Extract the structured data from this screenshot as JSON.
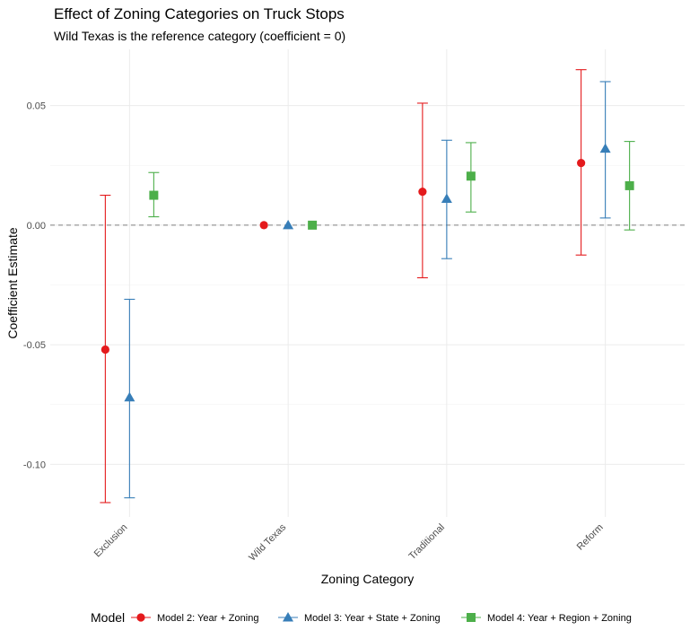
{
  "chart_data": {
    "type": "scatter",
    "title": "Effect of Zoning Categories on Truck Stops",
    "subtitle": "Wild Texas is the reference category (coefficient = 0)",
    "xlabel": "Zoning Category",
    "ylabel": "Coefficient Estimate",
    "categories": [
      "Exclusion",
      "Wild Texas",
      "Traditional",
      "Reform"
    ],
    "yticks": [
      "0.05",
      "0.00",
      "-0.05",
      "-0.10"
    ],
    "ytick_values": [
      0.05,
      0.0,
      -0.05,
      -0.1
    ],
    "ylim": [
      -0.122,
      0.0735
    ],
    "reference_line": 0,
    "grid": true,
    "legend": {
      "title": "Model",
      "position": "bottom"
    },
    "series": [
      {
        "name": "Model 2: Year + Zoning",
        "color": "#E41A1C",
        "marker": "circle",
        "estimate": [
          -0.052,
          0.0,
          0.014,
          0.026
        ],
        "ci_low": [
          -0.116,
          null,
          -0.022,
          -0.0125
        ],
        "ci_high": [
          0.0125,
          null,
          0.051,
          0.065
        ]
      },
      {
        "name": "Model 3: Year + State + Zoning",
        "color": "#377EB8",
        "marker": "triangle",
        "estimate": [
          -0.072,
          0.0,
          0.011,
          0.032
        ],
        "ci_low": [
          -0.114,
          null,
          -0.014,
          0.003
        ],
        "ci_high": [
          -0.031,
          null,
          0.0355,
          0.06
        ]
      },
      {
        "name": "Model 4: Year + Region + Zoning",
        "color": "#4DAF4A",
        "marker": "square",
        "estimate": [
          0.0125,
          0.0,
          0.0205,
          0.0165
        ],
        "ci_low": [
          0.0035,
          null,
          0.0055,
          -0.002
        ],
        "ci_high": [
          0.022,
          null,
          0.0345,
          0.035
        ]
      }
    ]
  }
}
